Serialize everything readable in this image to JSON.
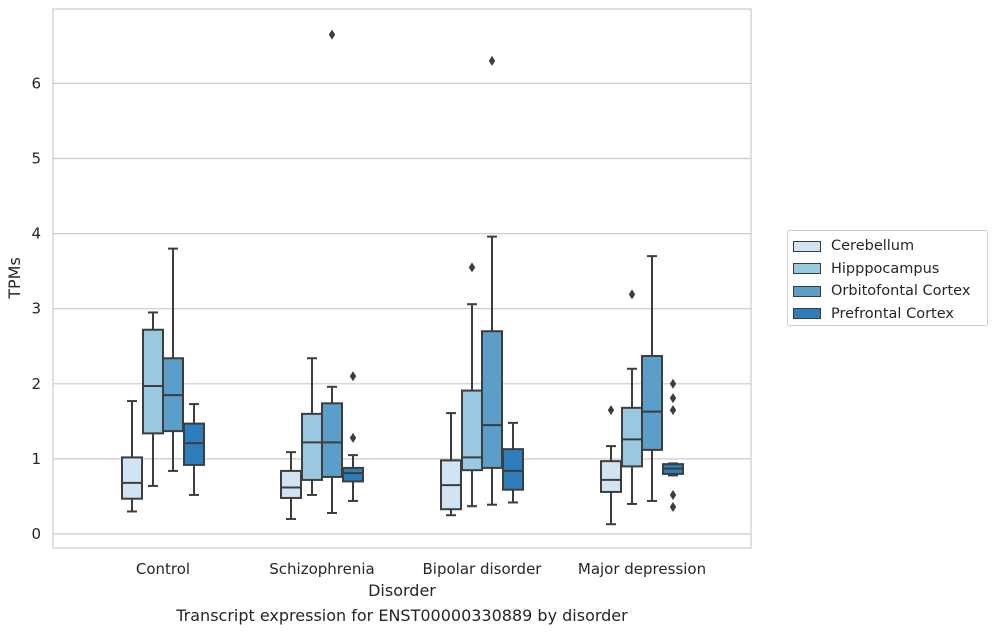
{
  "chart_data": {
    "type": "box",
    "xlabel": "Disorder",
    "ylabel": "TPMs",
    "ylim": [
      -0.18,
      7.0
    ],
    "yticks": [
      0,
      1,
      2,
      3,
      4,
      5,
      6
    ],
    "grid": "horizontal",
    "legend_placement": "right",
    "categories": [
      "Control",
      "Schizophrenia",
      "Bipolar disorder",
      "Major depression"
    ],
    "series": [
      {
        "name": "Cerebellum",
        "color": "#d2e3f3",
        "boxes": [
          {
            "whislo": 0.3,
            "q1": 0.47,
            "med": 0.68,
            "q3": 1.02,
            "whishi": 1.77,
            "fliers": []
          },
          {
            "whislo": 0.2,
            "q1": 0.48,
            "med": 0.62,
            "q3": 0.84,
            "whishi": 1.09,
            "fliers": []
          },
          {
            "whislo": 0.25,
            "q1": 0.33,
            "med": 0.65,
            "q3": 0.98,
            "whishi": 1.61,
            "fliers": []
          },
          {
            "whislo": 0.13,
            "q1": 0.56,
            "med": 0.72,
            "q3": 0.97,
            "whishi": 1.17,
            "fliers": [
              1.65
            ]
          }
        ]
      },
      {
        "name": "Hipppocampus",
        "color": "#9ac8e0",
        "boxes": [
          {
            "whislo": 0.64,
            "q1": 1.34,
            "med": 1.97,
            "q3": 2.72,
            "whishi": 2.95,
            "fliers": []
          },
          {
            "whislo": 0.52,
            "q1": 0.72,
            "med": 1.22,
            "q3": 1.6,
            "whishi": 2.34,
            "fliers": []
          },
          {
            "whislo": 0.37,
            "q1": 0.85,
            "med": 1.02,
            "q3": 1.91,
            "whishi": 3.06,
            "fliers": [
              3.55
            ]
          },
          {
            "whislo": 0.4,
            "q1": 0.9,
            "med": 1.26,
            "q3": 1.68,
            "whishi": 2.2,
            "fliers": [
              3.19
            ]
          }
        ]
      },
      {
        "name": "Orbitofontal Cortex",
        "color": "#5a9ec9",
        "boxes": [
          {
            "whislo": 0.84,
            "q1": 1.37,
            "med": 1.85,
            "q3": 2.34,
            "whishi": 3.8,
            "fliers": []
          },
          {
            "whislo": 0.28,
            "q1": 0.76,
            "med": 1.22,
            "q3": 1.74,
            "whishi": 1.96,
            "fliers": [
              6.65
            ]
          },
          {
            "whislo": 0.39,
            "q1": 0.88,
            "med": 1.45,
            "q3": 2.7,
            "whishi": 3.96,
            "fliers": [
              6.3
            ]
          },
          {
            "whislo": 0.44,
            "q1": 1.12,
            "med": 1.63,
            "q3": 2.37,
            "whishi": 3.7,
            "fliers": []
          }
        ]
      },
      {
        "name": "Prefrontal Cortex",
        "color": "#2e7ebc",
        "boxes": [
          {
            "whislo": 0.52,
            "q1": 0.92,
            "med": 1.21,
            "q3": 1.47,
            "whishi": 1.73,
            "fliers": []
          },
          {
            "whislo": 0.44,
            "q1": 0.7,
            "med": 0.81,
            "q3": 0.88,
            "whishi": 1.05,
            "fliers": [
              1.28,
              2.1
            ]
          },
          {
            "whislo": 0.42,
            "q1": 0.59,
            "med": 0.84,
            "q3": 1.13,
            "whishi": 1.48,
            "fliers": []
          },
          {
            "whislo": 0.78,
            "q1": 0.8,
            "med": 0.87,
            "q3": 0.93,
            "whishi": 0.94,
            "fliers": [
              0.36,
              0.52,
              1.65,
              1.81,
              2.0
            ]
          }
        ]
      }
    ],
    "caption": "Transcript expression for ENST00000330889 by disorder"
  }
}
